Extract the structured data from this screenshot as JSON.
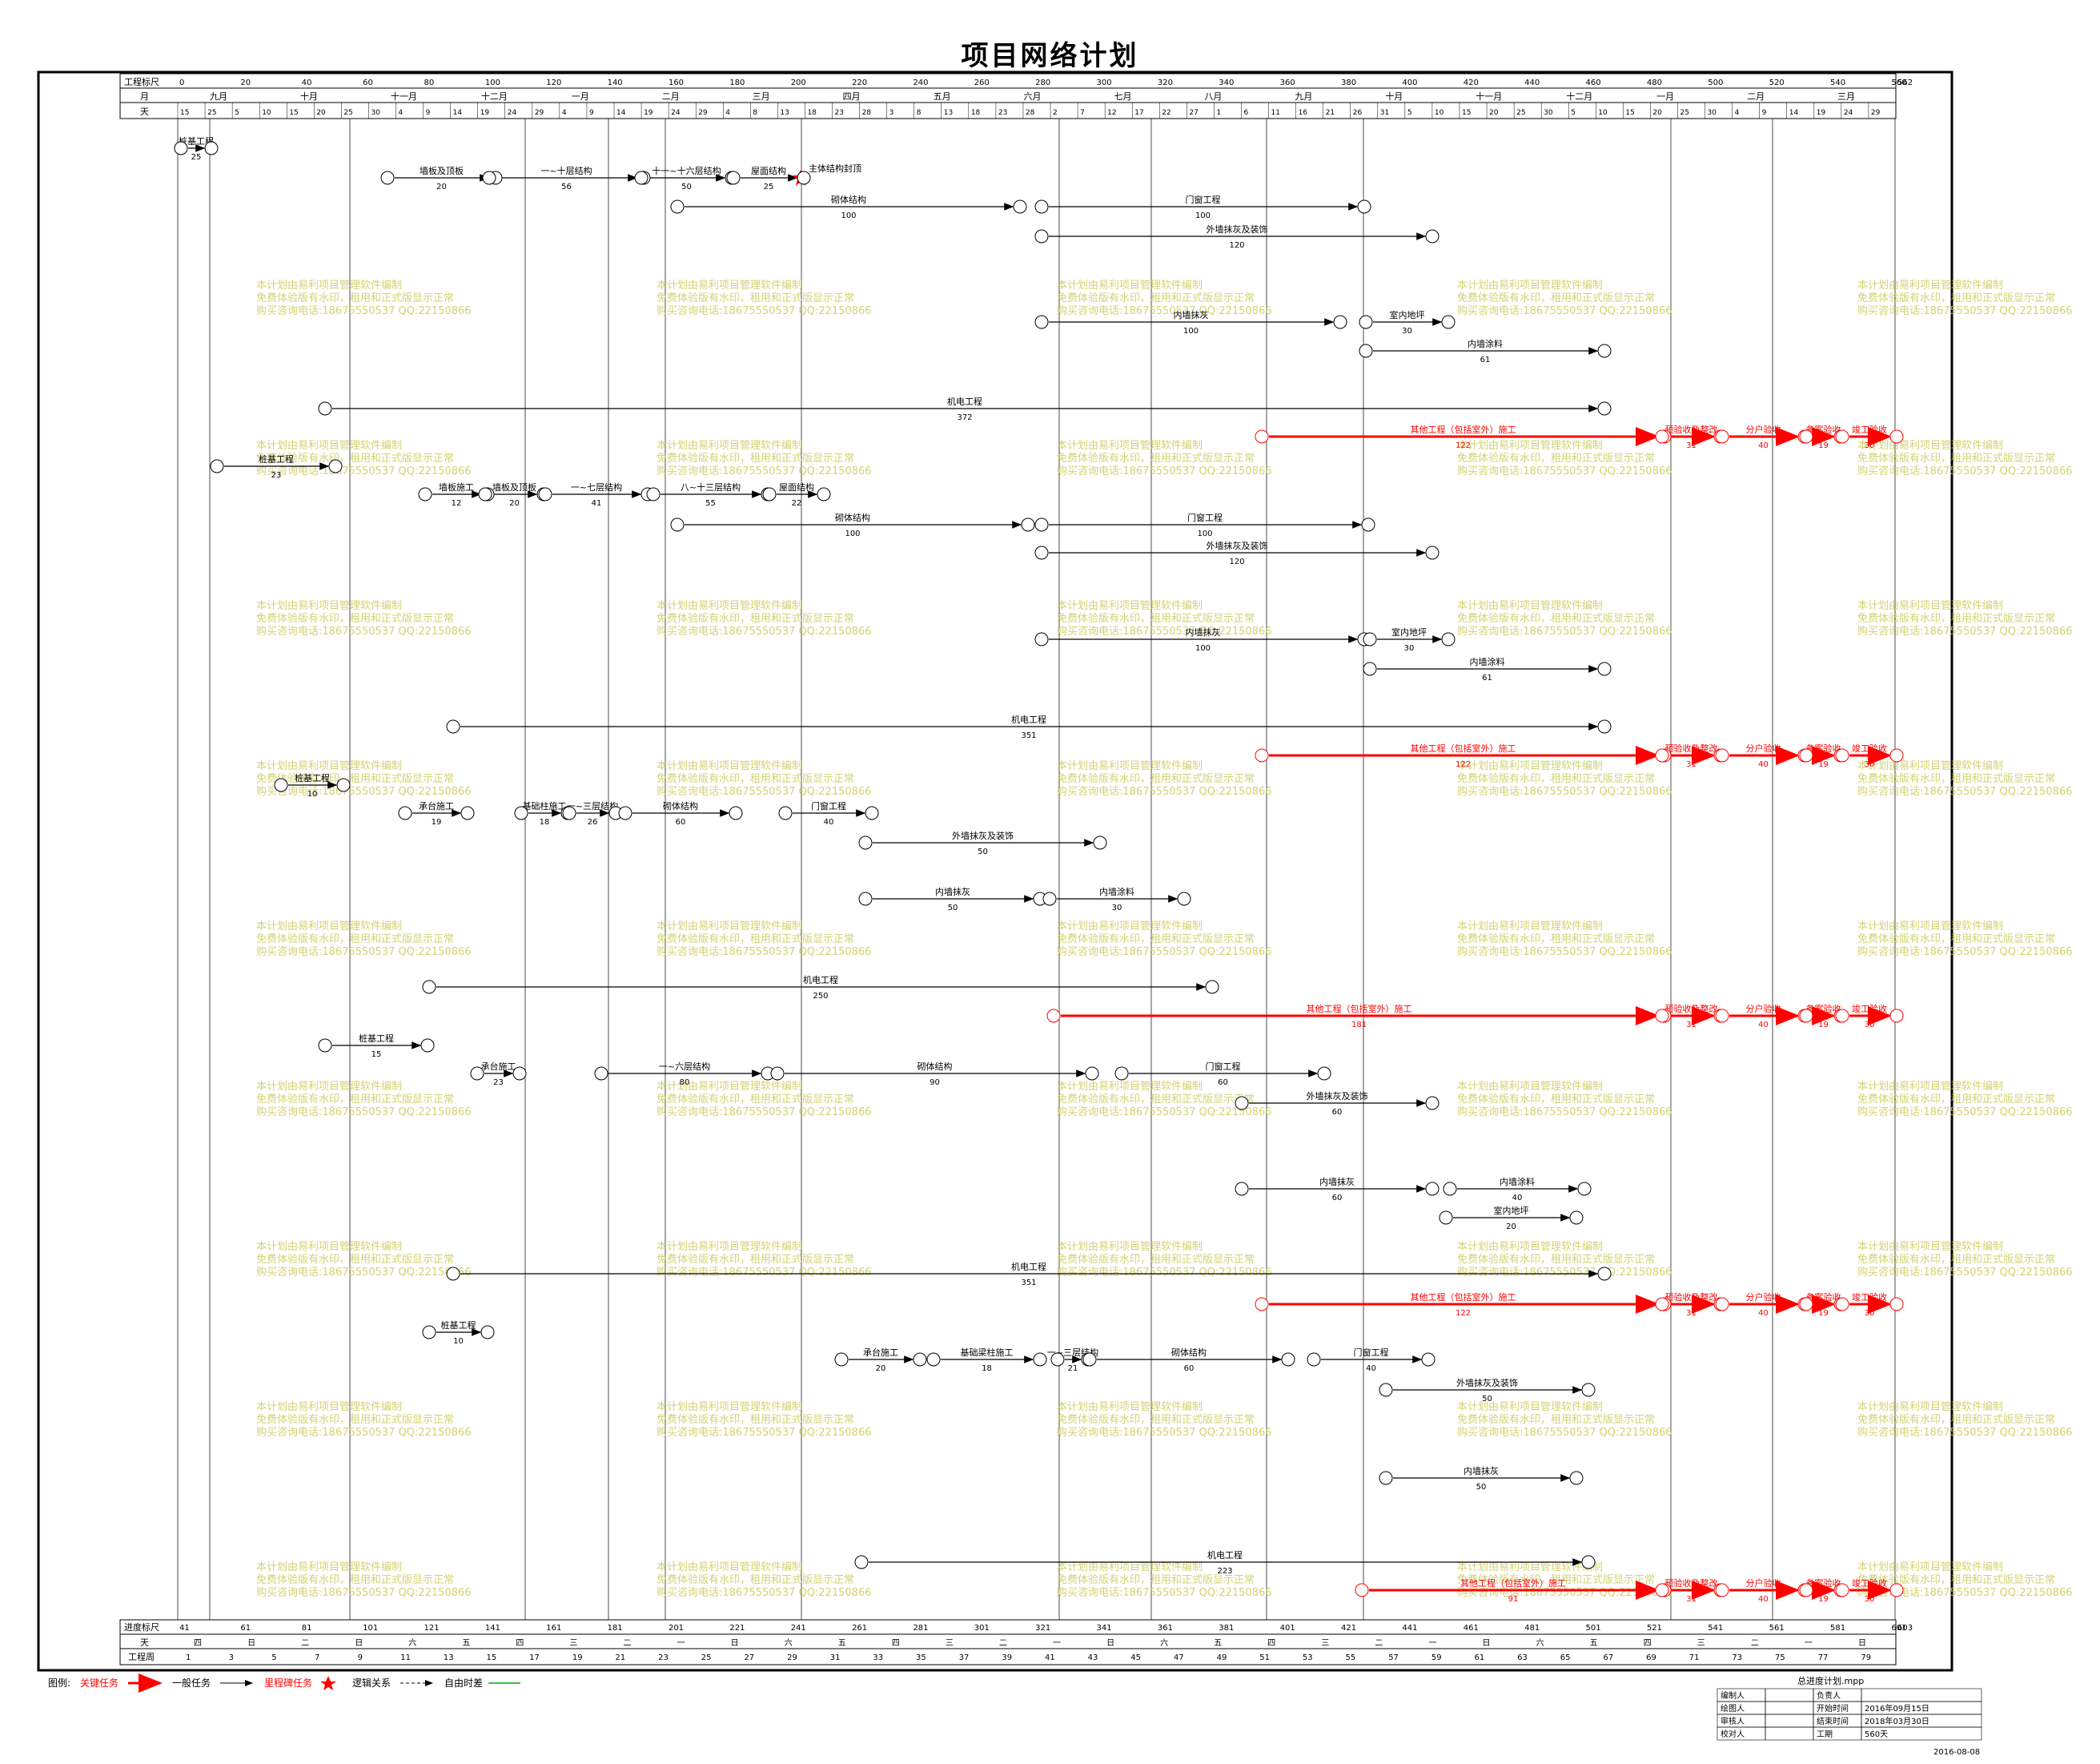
{
  "title": "项目网络计划",
  "header": {
    "scale_label": "工程标尺",
    "scale_ticks": [
      "0",
      "20",
      "40",
      "60",
      "80",
      "100",
      "120",
      "140",
      "160",
      "180",
      "200",
      "220",
      "240",
      "260",
      "280",
      "300",
      "320",
      "340",
      "360",
      "380",
      "400",
      "420",
      "440",
      "460",
      "480",
      "500",
      "520",
      "540",
      "560",
      "562"
    ],
    "month_label": "月",
    "months": [
      "九月",
      "十月",
      "十一月",
      "十二月",
      "一月",
      "二月",
      "三月",
      "四月",
      "五月",
      "六月",
      "七月",
      "八月",
      "九月",
      "十月",
      "十一月",
      "十二月",
      "一月",
      "二月",
      "三月"
    ],
    "day_label": "天",
    "days": [
      "15",
      "25",
      "5",
      "10",
      "15",
      "20",
      "25",
      "30",
      "4",
      "9",
      "14",
      "19",
      "24",
      "29",
      "4",
      "9",
      "14",
      "19",
      "24",
      "29",
      "4",
      "8",
      "13",
      "18",
      "23",
      "28",
      "3",
      "8",
      "13",
      "18",
      "23",
      "28",
      "2",
      "7",
      "12",
      "17",
      "22",
      "27",
      "1",
      "6",
      "11",
      "16",
      "21",
      "26",
      "31",
      "5",
      "10",
      "15",
      "20",
      "25",
      "30",
      "5",
      "10",
      "15",
      "20",
      "25",
      "30",
      "4",
      "9",
      "14",
      "19",
      "24",
      "29"
    ]
  },
  "footer": {
    "scale_label": "进度标尺",
    "scale_ticks": [
      "41",
      "61",
      "81",
      "101",
      "121",
      "141",
      "161",
      "181",
      "201",
      "221",
      "241",
      "261",
      "281",
      "301",
      "321",
      "341",
      "361",
      "381",
      "401",
      "421",
      "441",
      "461",
      "481",
      "501",
      "521",
      "541",
      "561",
      "581",
      "601",
      "603"
    ],
    "day_label": "天",
    "weekdays": [
      "四",
      "日",
      "二",
      "日",
      "六",
      "五",
      "四",
      "三",
      "二",
      "一",
      "日",
      "六",
      "五",
      "四",
      "三",
      "二",
      "一",
      "日",
      "六",
      "五",
      "四",
      "三",
      "二",
      "一",
      "日",
      "六",
      "五",
      "四",
      "三",
      "二",
      "一",
      "日"
    ],
    "week_label": "工程周",
    "weeks": [
      "1",
      "3",
      "5",
      "7",
      "9",
      "11",
      "13",
      "15",
      "17",
      "19",
      "21",
      "23",
      "25",
      "27",
      "29",
      "31",
      "33",
      "35",
      "37",
      "39",
      "41",
      "43",
      "45",
      "47",
      "49",
      "51",
      "53",
      "55",
      "57",
      "59",
      "61",
      "63",
      "65",
      "67",
      "69",
      "71",
      "73",
      "75",
      "77",
      "79"
    ]
  },
  "legend": {
    "title": "图例:",
    "critical": "关键任务",
    "normal": "一般任务",
    "milestone": "里程碑任务",
    "logic": "逻辑关系",
    "float": "自由时差"
  },
  "info_table": {
    "file": "总进度计划.mpp",
    "rows": [
      [
        "编制人",
        "",
        "负责人",
        ""
      ],
      [
        "绘图人",
        "",
        "开始时间",
        "2016年09月15日"
      ],
      [
        "审核人",
        "",
        "结束时间",
        "2018年03月30日"
      ],
      [
        "校对人",
        "",
        "工期",
        "560天"
      ]
    ],
    "date": "2016-08-08"
  },
  "watermark": [
    "本计划由易利项目管理软件编制",
    "免费体验版有水印，租用和正式版显示正常",
    "购买咨询电话:18675550537 QQ:22150866"
  ],
  "colors": {
    "critical": "#ff0000",
    "normal": "#000000",
    "float": "#cc00cc",
    "logic": "#00aa00",
    "watermark": "#c8c850"
  },
  "chart_data": {
    "type": "network",
    "tasks": [
      {
        "label": "桩基工程",
        "duration": "25"
      },
      {
        "label": "墙板及顶板",
        "duration": "20"
      },
      {
        "label": "一~十层结构",
        "duration": "56"
      },
      {
        "label": "十一~十六层结构",
        "duration": "50"
      },
      {
        "label": "屋面结构",
        "duration": "25"
      },
      {
        "label": "主体结构封顶",
        "duration": ""
      },
      {
        "label": "砌体结构",
        "duration": "100"
      },
      {
        "label": "门窗工程",
        "duration": "100"
      },
      {
        "label": "外墙抹灰及装饰",
        "duration": "120"
      },
      {
        "label": "内墙抹灰",
        "duration": "100"
      },
      {
        "label": "室内地坪",
        "duration": "30"
      },
      {
        "label": "内墙涂料",
        "duration": "61"
      },
      {
        "label": "机电工程",
        "duration": "372"
      },
      {
        "label": "其他工程（包括室外）施工",
        "duration": "122"
      },
      {
        "label": "预验收及整改",
        "duration": "31"
      },
      {
        "label": "分户验收",
        "duration": "40"
      },
      {
        "label": "备案验收",
        "duration": "19"
      },
      {
        "label": "竣工验收",
        "duration": "30"
      },
      {
        "label": "桩基工程",
        "duration": "23"
      },
      {
        "label": "墙板施工",
        "duration": "12"
      },
      {
        "label": "墙板及顶板",
        "duration": "20"
      },
      {
        "label": "一~七层结构",
        "duration": "41"
      },
      {
        "label": "八~十三层结构",
        "duration": "55"
      },
      {
        "label": "屋面结构",
        "duration": "22"
      },
      {
        "label": "机电工程",
        "duration": "351"
      },
      {
        "label": "桩基工程",
        "duration": "10"
      },
      {
        "label": "承台施工",
        "duration": "19"
      },
      {
        "label": "基础柱施工",
        "duration": "18"
      },
      {
        "label": "一~三层结构",
        "duration": "26"
      },
      {
        "label": "砌体结构",
        "duration": "60"
      },
      {
        "label": "门窗工程",
        "duration": "40"
      },
      {
        "label": "外墙抹灰及装饰",
        "duration": "50"
      },
      {
        "label": "内墙抹灰",
        "duration": "50"
      },
      {
        "label": "内墙涂料",
        "duration": "30"
      },
      {
        "label": "机电工程",
        "duration": "250"
      },
      {
        "label": "其他工程（包括室外）施工",
        "duration": "181"
      },
      {
        "label": "桩基工程",
        "duration": "15"
      },
      {
        "label": "承台施工",
        "duration": "23"
      },
      {
        "label": "一~六层结构",
        "duration": "80"
      },
      {
        "label": "砌体结构",
        "duration": "90"
      },
      {
        "label": "门窗工程",
        "duration": "60"
      },
      {
        "label": "外墙抹灰及装饰",
        "duration": "60"
      },
      {
        "label": "内墙抹灰",
        "duration": "60"
      },
      {
        "label": "内墙涂料",
        "duration": "40"
      },
      {
        "label": "室内地坪",
        "duration": "20"
      },
      {
        "label": "桩基工程",
        "duration": "10"
      },
      {
        "label": "承台施工",
        "duration": "20"
      },
      {
        "label": "基础梁柱施工",
        "duration": "18"
      },
      {
        "label": "一~三层结构",
        "duration": "21"
      },
      {
        "label": "砌体结构",
        "duration": "60"
      },
      {
        "label": "门窗工程",
        "duration": "40"
      },
      {
        "label": "外墙抹灰及装饰",
        "duration": "50"
      },
      {
        "label": "内墙抹灰",
        "duration": "50"
      },
      {
        "label": "机电工程",
        "duration": "223"
      },
      {
        "label": "其他工程（包括室外）施工",
        "duration": "91"
      }
    ]
  }
}
